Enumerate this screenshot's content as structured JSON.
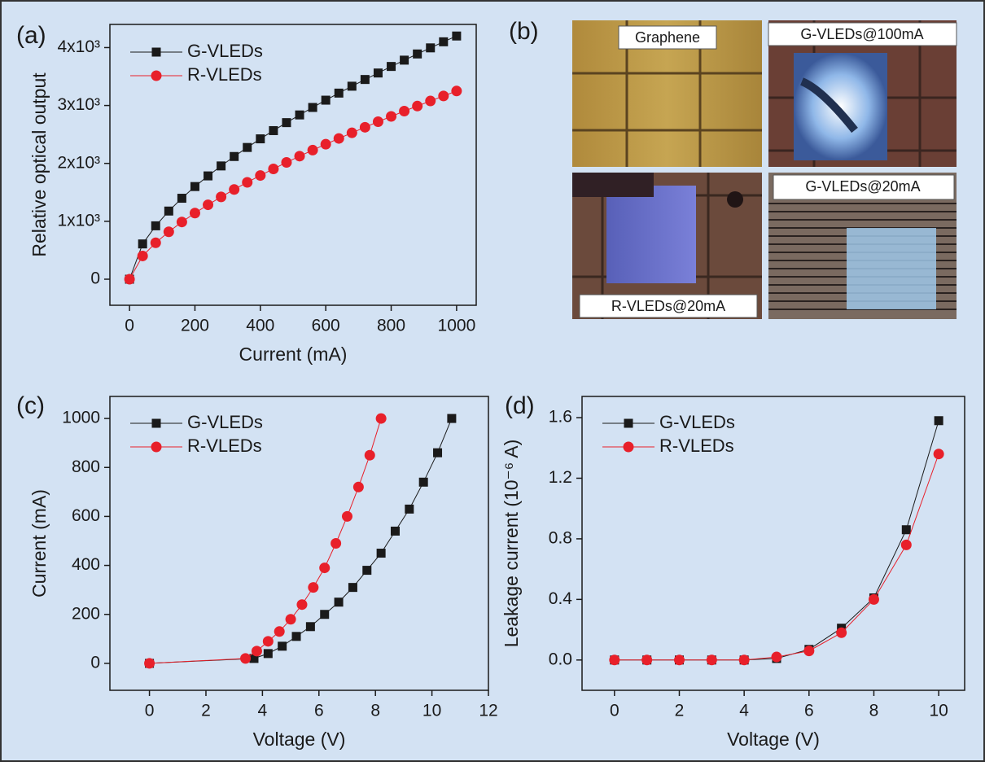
{
  "chart_data": [
    {
      "type": "line",
      "label": "(a)",
      "xlabel": "Current (mA)",
      "ylabel": "Relative optical output",
      "x": [
        0,
        40,
        80,
        120,
        160,
        200,
        240,
        280,
        320,
        360,
        400,
        440,
        480,
        520,
        560,
        600,
        640,
        680,
        720,
        760,
        800,
        840,
        880,
        920,
        960,
        1000
      ],
      "series": [
        {
          "name": "G-VLEDs",
          "color": "#1a1a1a",
          "marker": "square",
          "values": [
            0,
            609,
            922,
            1177,
            1398,
            1600,
            1784,
            1956,
            2119,
            2275,
            2424,
            2566,
            2704,
            2837,
            2966,
            3092,
            3214,
            3333,
            3449,
            3561,
            3674,
            3783,
            3890,
            3995,
            4100,
            4200
          ]
        },
        {
          "name": "R-VLEDs",
          "color": "#e8202a",
          "marker": "circle",
          "values": [
            0,
            401,
            629,
            819,
            988,
            1142,
            1285,
            1421,
            1550,
            1673,
            1791,
            1905,
            2017,
            2125,
            2229,
            2331,
            2431,
            2528,
            2624,
            2720,
            2811,
            2903,
            2990,
            3078,
            3165,
            3250
          ]
        }
      ],
      "xlim": [
        -60,
        1060
      ],
      "xticks": [
        0,
        200,
        400,
        600,
        800,
        1000
      ],
      "ylim": [
        -450,
        4400
      ],
      "yticks": [
        0,
        {
          "value": 1000,
          "label": "1x10³"
        },
        {
          "value": 2000,
          "label": "2x10³"
        },
        {
          "value": 3000,
          "label": "3x10³"
        },
        {
          "value": 4000,
          "label": "4x10³"
        }
      ]
    },
    {
      "type": "line",
      "label": "(c)",
      "xlabel": "Voltage (V)",
      "ylabel": "Current (mA)",
      "series": [
        {
          "name": "G-VLEDs",
          "color": "#1a1a1a",
          "marker": "square",
          "x": [
            0,
            3.7,
            4.2,
            4.7,
            5.2,
            5.7,
            6.2,
            6.7,
            7.2,
            7.7,
            8.2,
            8.7,
            9.2,
            9.7,
            10.2,
            10.7
          ],
          "values": [
            0,
            20,
            40,
            70,
            110,
            150,
            200,
            250,
            310,
            380,
            450,
            540,
            630,
            740,
            860,
            1000
          ]
        },
        {
          "name": "R-VLEDs",
          "color": "#e8202a",
          "marker": "circle",
          "x": [
            0,
            3.4,
            3.8,
            4.2,
            4.6,
            5.0,
            5.4,
            5.8,
            6.2,
            6.6,
            7.0,
            7.4,
            7.8,
            8.2
          ],
          "values": [
            0,
            20,
            50,
            90,
            130,
            180,
            240,
            310,
            390,
            490,
            600,
            720,
            850,
            1000
          ]
        }
      ],
      "xlim": [
        -1.4,
        12
      ],
      "xticks": [
        0,
        2,
        4,
        6,
        8,
        10,
        12
      ],
      "ylim": [
        -110,
        1090
      ],
      "yticks": [
        0,
        200,
        400,
        600,
        800,
        1000
      ]
    },
    {
      "type": "line",
      "label": "(d)",
      "xlabel": "Voltage (V)",
      "ylabel": "Leakage current (10⁻⁶ A)",
      "x": [
        0,
        1,
        2,
        3,
        4,
        5,
        6,
        7,
        8,
        9,
        10
      ],
      "series": [
        {
          "name": "G-VLEDs",
          "color": "#1a1a1a",
          "marker": "square",
          "values": [
            0,
            0,
            0,
            0,
            0,
            0.01,
            0.07,
            0.21,
            0.41,
            0.86,
            1.58
          ]
        },
        {
          "name": "R-VLEDs",
          "color": "#e8202a",
          "marker": "circle",
          "values": [
            0,
            0,
            0,
            0,
            0,
            0.02,
            0.06,
            0.18,
            0.4,
            0.76,
            1.36
          ]
        }
      ],
      "xlim": [
        -1,
        10.8
      ],
      "xticks": [
        0,
        2,
        4,
        6,
        8,
        10
      ],
      "ylim": [
        -0.2,
        1.74
      ],
      "yticks": [
        {
          "value": 0,
          "label": "0.0"
        },
        0.4,
        0.8,
        1.2,
        1.6
      ]
    }
  ],
  "photos": {
    "label": "(b)",
    "captions": [
      "Graphene",
      "G-VLEDs@100mA",
      "R-VLEDs@20mA",
      "G-VLEDs@20mA"
    ]
  }
}
